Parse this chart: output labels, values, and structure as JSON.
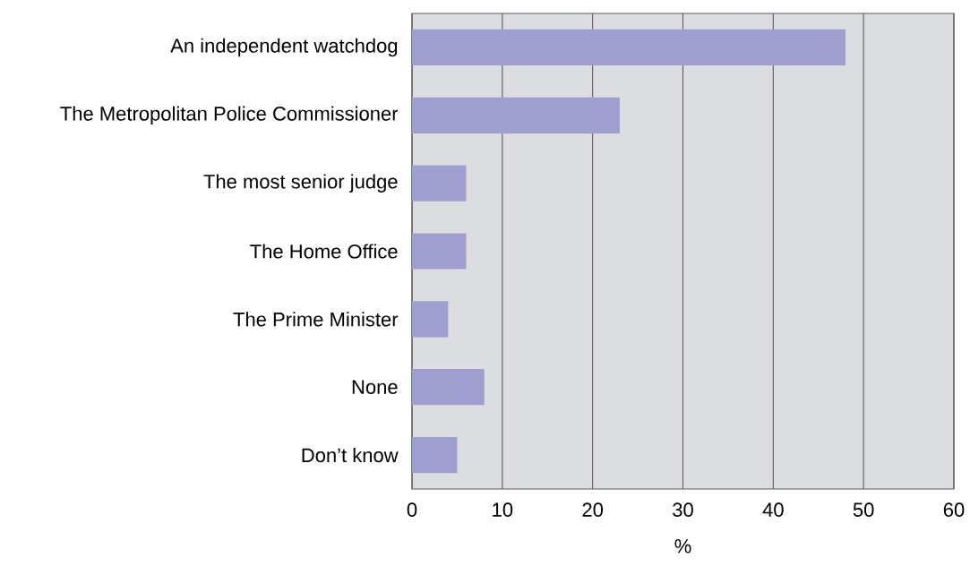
{
  "chart_data": {
    "type": "bar",
    "orientation": "horizontal",
    "xlabel": "%",
    "categories": [
      "An independent watchdog",
      "The Metropolitan Police Commissioner",
      "The most senior judge",
      "The Home Office",
      "The Prime Minister",
      "None",
      "Don’t know"
    ],
    "values": [
      48,
      23,
      6,
      6,
      4,
      8,
      5
    ],
    "color": "#9e9fcf",
    "xlim": [
      0,
      60
    ],
    "xticks": [
      0,
      10,
      20,
      30,
      40,
      50,
      60
    ],
    "grid": "x"
  }
}
